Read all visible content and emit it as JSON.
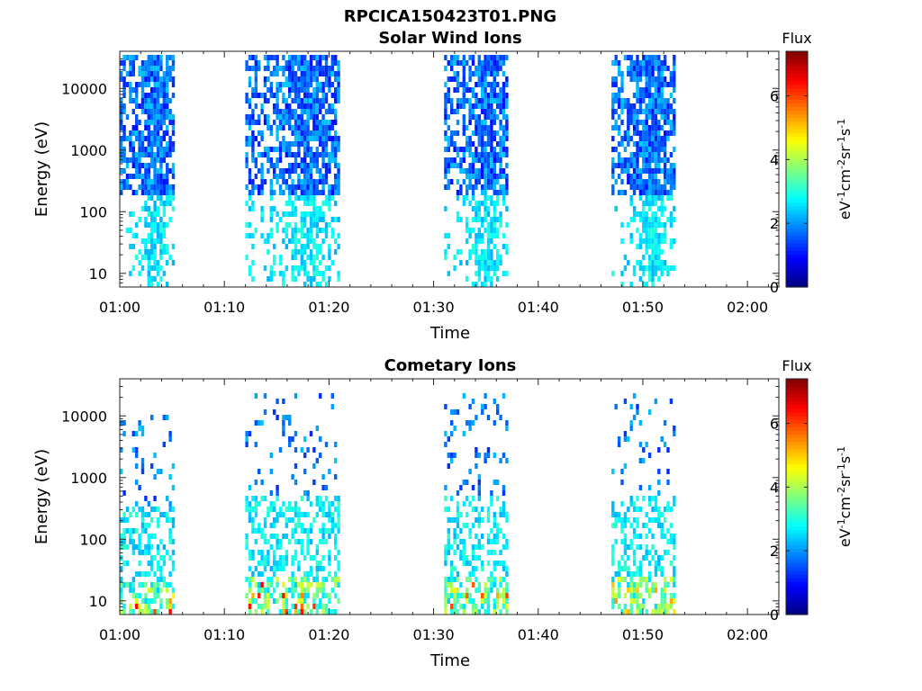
{
  "figure_title": "RPCICA150423T01.PNG",
  "chart_data": [
    {
      "type": "heatmap",
      "title": "Solar Wind Ions",
      "xlabel": "Time",
      "ylabel": "Energy (eV)",
      "x_ticks": [
        "01:00",
        "01:10",
        "01:20",
        "01:30",
        "01:40",
        "01:50",
        "02:00"
      ],
      "x_range": [
        "01:00",
        "02:03"
      ],
      "y_ticks": [
        "10",
        "100",
        "1000",
        "10000"
      ],
      "y_range": [
        6,
        40000
      ],
      "y_scale": "log",
      "colorbar": {
        "title": "Flux",
        "label": "eV-1cm-2sr-1s-1",
        "ticks": [
          "0",
          "2",
          "4",
          "6"
        ],
        "range": [
          0,
          7.4
        ],
        "colormap": "jet"
      },
      "bursts": [
        {
          "start": "01:00",
          "end": "01:05",
          "emin": 6,
          "emax": 40000,
          "flux_peak": 3.2
        },
        {
          "start": "01:12",
          "end": "01:21",
          "emin": 6,
          "emax": 35000,
          "flux_peak": 3.2
        },
        {
          "start": "01:31",
          "end": "01:37",
          "emin": 6,
          "emax": 40000,
          "flux_peak": 3.2
        },
        {
          "start": "01:47",
          "end": "01:53",
          "emin": 6,
          "emax": 35000,
          "flux_peak": 3.2
        }
      ]
    },
    {
      "type": "heatmap",
      "title": "Cometary Ions",
      "xlabel": "Time",
      "ylabel": "Energy (eV)",
      "x_ticks": [
        "01:00",
        "01:10",
        "01:20",
        "01:30",
        "01:40",
        "01:50",
        "02:00"
      ],
      "x_range": [
        "01:00",
        "02:03"
      ],
      "y_ticks": [
        "10",
        "100",
        "1000",
        "10000"
      ],
      "y_range": [
        6,
        40000
      ],
      "y_scale": "log",
      "colorbar": {
        "title": "Flux",
        "label": "eV-1cm-2sr-1s-1",
        "ticks": [
          "0",
          "2",
          "4",
          "6"
        ],
        "range": [
          0,
          7.4
        ],
        "colormap": "jet"
      },
      "bursts": [
        {
          "start": "01:00",
          "end": "01:05",
          "emin": 6,
          "emax": 11000,
          "flux_peak": 6.8
        },
        {
          "start": "01:12",
          "end": "01:21",
          "emin": 6,
          "emax": 26000,
          "flux_peak": 6.5
        },
        {
          "start": "01:31",
          "end": "01:37",
          "emin": 6,
          "emax": 24000,
          "flux_peak": 6.0
        },
        {
          "start": "01:47",
          "end": "01:53",
          "emin": 6,
          "emax": 24000,
          "flux_peak": 5.8
        }
      ]
    }
  ]
}
